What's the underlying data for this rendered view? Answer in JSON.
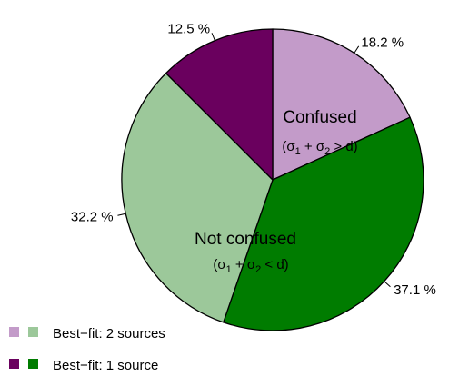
{
  "chart_data": {
    "type": "pie",
    "slices": [
      {
        "label": "18.2 %",
        "value": 18.2,
        "color": "#c39bc9",
        "group": "confused",
        "legend": 0
      },
      {
        "label": "37.1 %",
        "value": 37.1,
        "color": "#007c00",
        "group": "not_confused",
        "legend": 1
      },
      {
        "label": "32.2 %",
        "value": 32.2,
        "color": "#9cc89a",
        "group": "not_confused",
        "legend": 0
      },
      {
        "label": "12.5 %",
        "value": 12.5,
        "color": "#6a005e",
        "group": "confused",
        "legend": 1
      }
    ],
    "start_angle_deg": 90,
    "direction": "clockwise",
    "annotations": [
      {
        "id": "confused",
        "title": "Confused",
        "formula_lead": "(σ",
        "sub1": "1",
        "formula_mid": " + σ",
        "sub2": "2",
        "formula_tail": " > d)"
      },
      {
        "id": "not-confused",
        "title": "Not confused",
        "formula_lead": "(σ",
        "sub1": "1",
        "formula_mid": " + σ",
        "sub2": "2",
        "formula_tail": " < d)"
      }
    ],
    "legend": [
      {
        "text": "Best−fit: 2 sources",
        "colors": [
          "#c39bc9",
          "#9cc89a"
        ]
      },
      {
        "text": "Best−fit: 1 source",
        "colors": [
          "#6a005e",
          "#007c00"
        ]
      }
    ],
    "legend_position": "bottom-left"
  }
}
